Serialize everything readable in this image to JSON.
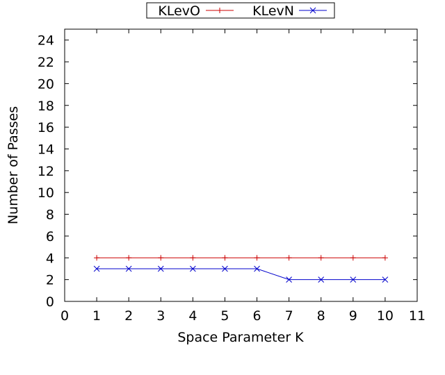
{
  "chart_data": {
    "type": "line",
    "title": "",
    "xlabel": "Space Parameter K",
    "ylabel": "Number of Passes",
    "xlim": [
      0,
      11
    ],
    "ylim": [
      0,
      25
    ],
    "x_ticks": [
      "0",
      "1",
      "2",
      "3",
      "4",
      "5",
      "6",
      "7",
      "8",
      "9",
      "10",
      "11"
    ],
    "y_ticks": [
      "0",
      "2",
      "4",
      "6",
      "8",
      "10",
      "12",
      "14",
      "16",
      "18",
      "20",
      "22",
      "24"
    ],
    "grid": false,
    "legend_position": "top-center",
    "x": [
      1,
      2,
      3,
      4,
      5,
      6,
      7,
      8,
      9,
      10
    ],
    "series": [
      {
        "name": "KLevO",
        "color": "#cc0000",
        "marker": "plus",
        "values": [
          4,
          4,
          4,
          4,
          4,
          4,
          4,
          4,
          4,
          4
        ]
      },
      {
        "name": "KLevN",
        "color": "#0000cc",
        "marker": "cross",
        "values": [
          3,
          3,
          3,
          3,
          3,
          3,
          2,
          2,
          2,
          2
        ]
      }
    ]
  }
}
